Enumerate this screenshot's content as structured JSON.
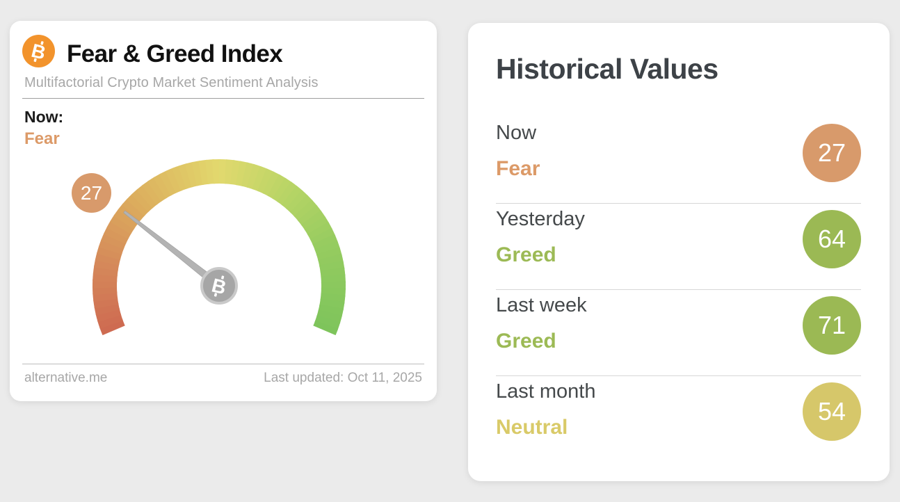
{
  "page": {
    "background": "#ebebeb"
  },
  "icons": {
    "btc_glyph": "B"
  },
  "gauge_card": {
    "title": "Fear & Greed Index",
    "subtitle": "Multifactorial Crypto Market Sentiment Analysis",
    "now_label": "Now:",
    "now_sentiment": "Fear",
    "value_badge": "27",
    "footer_site": "alternative.me",
    "footer_updated": "Last updated: Oct 11, 2025",
    "colors": {
      "bitcoin_orange": "#f2932c",
      "sentiment_text": "#dc9a68",
      "badge_bg": "#d89a6b"
    }
  },
  "gauge": {
    "value": 27,
    "min": 0,
    "max": 100,
    "start_angle_deg": 203,
    "sweep_deg": 226,
    "outer_radius": 182,
    "inner_radius": 147,
    "needle_length": 173,
    "arc_stops": [
      [
        0,
        "#ce6a51"
      ],
      [
        0.15,
        "#d5895a"
      ],
      [
        0.3,
        "#dcac5d"
      ],
      [
        0.45,
        "#e0cd68"
      ],
      [
        0.5,
        "#e2d96e"
      ],
      [
        0.65,
        "#bad566"
      ],
      [
        0.8,
        "#97cc60"
      ],
      [
        1,
        "#7dc45b"
      ]
    ],
    "needle_color": "#b3b3b3",
    "needle_edge": "#9c9c9c",
    "hub_fill": "#a6a6a6",
    "hub_ring": "#c9c9c9"
  },
  "history_card": {
    "title": "Historical Values",
    "rows": [
      {
        "label": "Now",
        "sentiment": "Fear",
        "value": "27",
        "circle_color": "#d89a6b",
        "sentiment_color": "#dc9a68"
      },
      {
        "label": "Yesterday",
        "sentiment": "Greed",
        "value": "64",
        "circle_color": "#9bb954",
        "sentiment_color": "#9cba55"
      },
      {
        "label": "Last week",
        "sentiment": "Greed",
        "value": "71",
        "circle_color": "#9bb954",
        "sentiment_color": "#9cba55"
      },
      {
        "label": "Last month",
        "sentiment": "Neutral",
        "value": "54",
        "circle_color": "#d6c76a",
        "sentiment_color": "#d9ca68"
      }
    ]
  },
  "chart_data": {
    "type": "gauge",
    "title": "Fear & Greed Index",
    "value": 27,
    "range": [
      0,
      100
    ],
    "current_classification": "Fear",
    "last_updated": "Oct 11, 2025",
    "historical": [
      {
        "period": "Now",
        "classification": "Fear",
        "value": 27
      },
      {
        "period": "Yesterday",
        "classification": "Greed",
        "value": 64
      },
      {
        "period": "Last week",
        "classification": "Greed",
        "value": 71
      },
      {
        "period": "Last month",
        "classification": "Neutral",
        "value": 54
      }
    ]
  }
}
